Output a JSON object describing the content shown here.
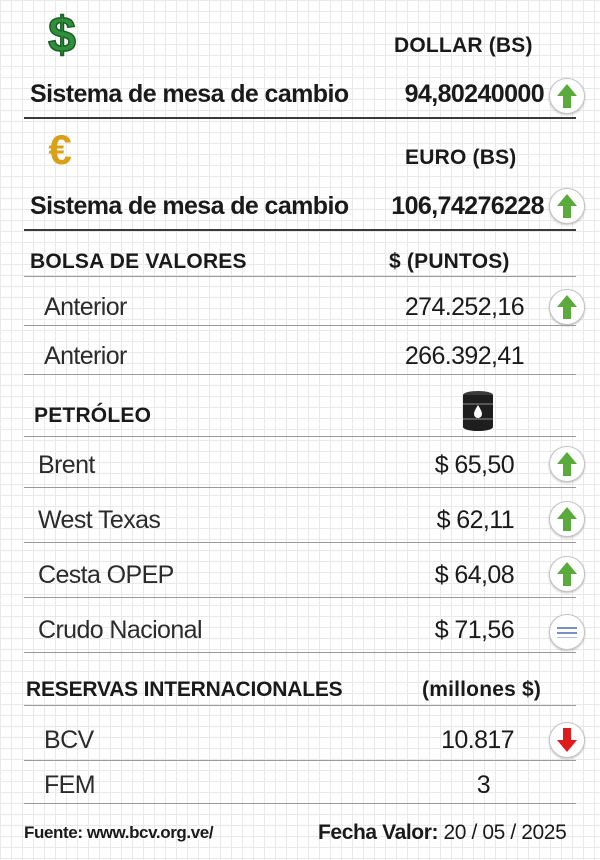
{
  "dollar": {
    "symbol": "$",
    "header": "DOLLAR (BS)",
    "label": "Sistema de mesa de cambio",
    "value": "94,80240000",
    "trend_icon": "arrow-up-icon"
  },
  "euro": {
    "symbol": "€",
    "header": "EURO (BS)",
    "label": "Sistema de mesa de cambio",
    "value": "106,74276228",
    "trend_icon": "arrow-up-icon"
  },
  "bolsa": {
    "header": "BOLSA DE VALORES",
    "unit": "$ (PUNTOS)",
    "rows": [
      {
        "label": "Anterior",
        "value": "274.252,16",
        "trend_icon": "arrow-up-icon"
      },
      {
        "label": "Anterior",
        "value": "266.392,41"
      }
    ]
  },
  "petroleo": {
    "header": "PETRÓLEO",
    "icon": "oil-barrel-icon",
    "rows": [
      {
        "label": "Brent",
        "value": "$ 65,50",
        "trend_icon": "arrow-up-icon"
      },
      {
        "label": "West Texas",
        "value": "$ 62,11",
        "trend_icon": "arrow-up-icon"
      },
      {
        "label": "Cesta OPEP",
        "value": "$ 64,08",
        "trend_icon": "arrow-up-icon"
      },
      {
        "label": "Crudo Nacional",
        "value": "$ 71,56",
        "trend_icon": "equal-icon"
      }
    ]
  },
  "reservas": {
    "header": "RESERVAS INTERNACIONALES",
    "unit": "(millones $)",
    "rows": [
      {
        "label": "BCV",
        "value": "10.817",
        "trend_icon": "arrow-down-icon"
      },
      {
        "label": "FEM",
        "value": "3"
      }
    ]
  },
  "footer": {
    "source": "Fuente: www.bcv.org.ve/",
    "date_label": "Fecha Valor:",
    "date_value": " 20 / 05 / 2025"
  },
  "colors": {
    "up": "#5aaa3c",
    "down": "#e01b1b",
    "dollar_green": "#2f8f3a",
    "euro_gold": "#d9a018"
  }
}
